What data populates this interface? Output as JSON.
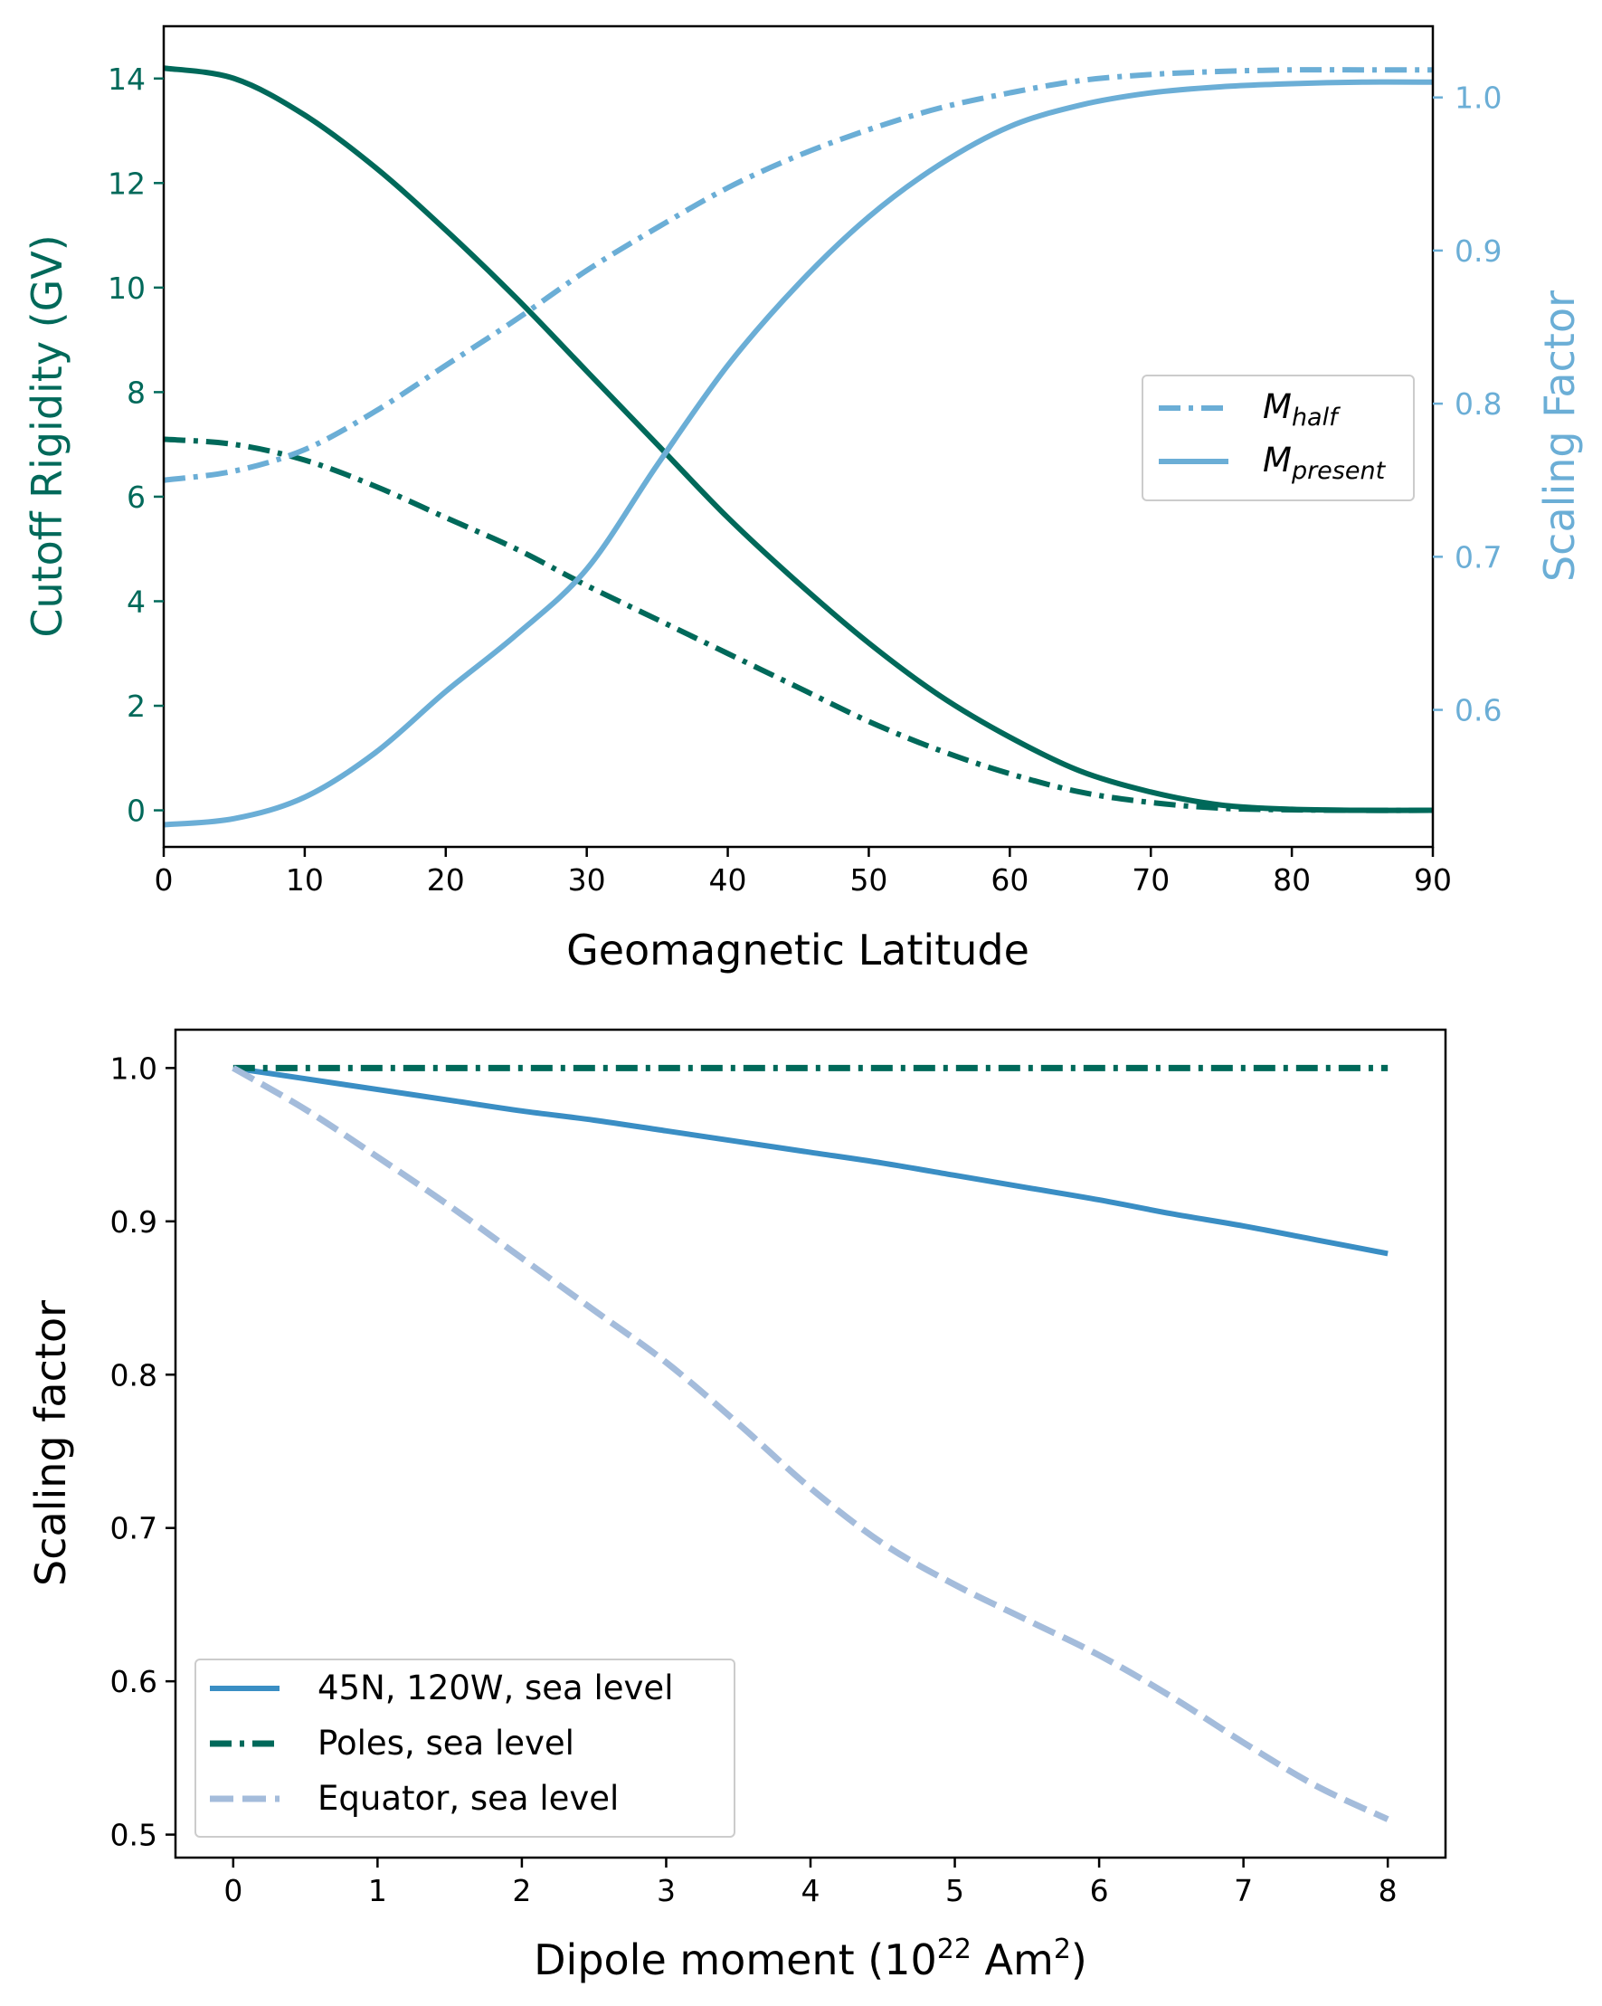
{
  "colors": {
    "dark_green": "#00695a",
    "light_blue": "#6baed6",
    "mid_blue": "#3a8ec4",
    "pale_blue": "#a4bcdb",
    "axis": "#000000"
  },
  "chart_data": [
    {
      "type": "line",
      "title": "",
      "xlabel": "Geomagnetic Latitude",
      "ylabel": "Cutoff Rigidity (GV)",
      "ylabel_right": "Scaling Factor",
      "xlim": [
        0,
        90
      ],
      "ylim": [
        -0.7,
        15.0
      ],
      "ylim_right": [
        0.5105,
        1.0465
      ],
      "xticks": [
        0,
        10,
        20,
        30,
        40,
        50,
        60,
        70,
        80,
        90
      ],
      "yticks": [
        0,
        2,
        4,
        6,
        8,
        10,
        12,
        14
      ],
      "yticks_right": [
        0.6,
        0.7,
        0.8,
        0.9,
        1.0
      ],
      "grid": false,
      "legend": {
        "position": "center-right",
        "entries": [
          {
            "base": "M",
            "sub": "half",
            "style": "dashdot"
          },
          {
            "base": "M",
            "sub": "present",
            "style": "solid"
          }
        ]
      },
      "x": [
        0,
        5,
        10,
        15,
        20,
        25,
        30,
        35,
        40,
        45,
        50,
        55,
        60,
        65,
        70,
        75,
        80,
        85,
        90
      ],
      "series": [
        {
          "axis": "left",
          "style": "solid",
          "color": "dark_green",
          "values": [
            14.2,
            14.0,
            13.3,
            12.3,
            11.1,
            9.8,
            8.4,
            7.0,
            5.6,
            4.35,
            3.2,
            2.2,
            1.4,
            0.75,
            0.35,
            0.1,
            0.02,
            0.0,
            0.0
          ]
        },
        {
          "axis": "left",
          "style": "dashdot",
          "color": "dark_green",
          "values": [
            7.1,
            7.0,
            6.7,
            6.2,
            5.6,
            5.0,
            4.3,
            3.65,
            3.0,
            2.35,
            1.7,
            1.15,
            0.7,
            0.35,
            0.15,
            0.04,
            0.01,
            0.0,
            0.0
          ]
        },
        {
          "axis": "right",
          "style": "solid",
          "color": "light_blue",
          "values": [
            0.525,
            0.529,
            0.543,
            0.572,
            0.612,
            0.649,
            0.692,
            0.76,
            0.825,
            0.878,
            0.922,
            0.956,
            0.981,
            0.995,
            1.003,
            1.007,
            1.009,
            1.01,
            1.01
          ]
        },
        {
          "axis": "right",
          "style": "dashdot",
          "color": "light_blue",
          "values": [
            0.75,
            0.756,
            0.77,
            0.795,
            0.825,
            0.855,
            0.887,
            0.915,
            0.941,
            0.962,
            0.979,
            0.993,
            1.003,
            1.011,
            1.015,
            1.017,
            1.018,
            1.018,
            1.018
          ]
        }
      ]
    },
    {
      "type": "line",
      "title": "",
      "xlabel": "Dipole moment (10",
      "xlabel_sup1": "22",
      "xlabel_mid": " Am",
      "xlabel_sup2": "2",
      "xlabel_end": ")",
      "ylabel": "Scaling factor",
      "xlim": [
        -0.4,
        8.4
      ],
      "ylim": [
        0.485,
        1.025
      ],
      "xticks": [
        0,
        1,
        2,
        3,
        4,
        5,
        6,
        7,
        8
      ],
      "yticks": [
        0.5,
        0.6,
        0.7,
        0.8,
        0.9,
        1.0
      ],
      "grid": false,
      "legend": {
        "position": "lower-left"
      },
      "x": [
        0,
        0.5,
        1,
        1.5,
        2,
        2.5,
        3,
        3.5,
        4,
        4.5,
        5,
        5.5,
        6,
        6.5,
        7,
        7.5,
        8
      ],
      "series": [
        {
          "name": "45N, 120W, sea level",
          "style": "solid",
          "color": "mid_blue",
          "values": [
            1.0,
            0.993,
            0.986,
            0.979,
            0.972,
            0.966,
            0.959,
            0.952,
            0.945,
            0.938,
            0.93,
            0.922,
            0.914,
            0.905,
            0.897,
            0.888,
            0.879
          ]
        },
        {
          "name": "Poles, sea level",
          "style": "dashdot",
          "color": "dark_green",
          "values": [
            1.0,
            1.0,
            1.0,
            1.0,
            1.0,
            1.0,
            1.0,
            1.0,
            1.0,
            1.0,
            1.0,
            1.0,
            1.0,
            1.0,
            1.0,
            1.0,
            1.0
          ]
        },
        {
          "name": "Equator, sea level",
          "style": "dashed",
          "color": "pale_blue",
          "values": [
            1.0,
            0.973,
            0.942,
            0.91,
            0.876,
            0.842,
            0.808,
            0.768,
            0.726,
            0.69,
            0.663,
            0.64,
            0.617,
            0.59,
            0.56,
            0.532,
            0.51
          ]
        }
      ]
    }
  ]
}
